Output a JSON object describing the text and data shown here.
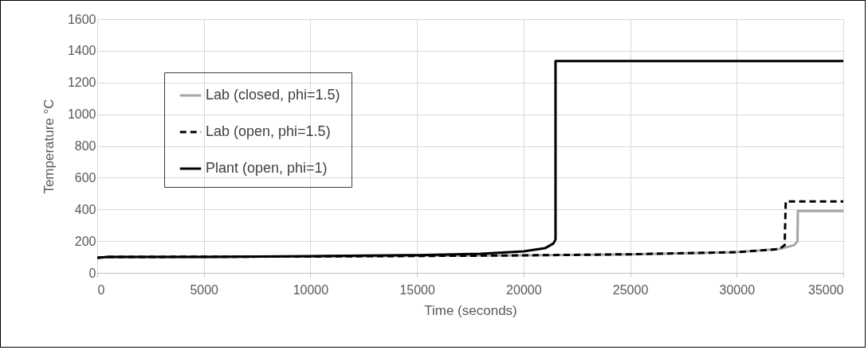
{
  "chart_data": {
    "type": "line",
    "xlabel": "Time (seconds)",
    "ylabel": "Temperature °C",
    "xlim": [
      0,
      35000
    ],
    "xticks": [
      0,
      5000,
      10000,
      15000,
      20000,
      25000,
      30000,
      35000
    ],
    "ylim": [
      0,
      1600
    ],
    "yticks": [
      0,
      200,
      400,
      600,
      800,
      1000,
      1200,
      1400,
      1600
    ],
    "grid": true,
    "legend": "top left",
    "series": [
      {
        "name": "Lab (closed, phi=1.5)",
        "color": "#a5a5a5",
        "line_style": "solid",
        "x": [
          0,
          500,
          10000,
          20000,
          25000,
          30000,
          32000,
          32700,
          32850,
          32870,
          35000
        ],
        "values": [
          95,
          100,
          103,
          110,
          117,
          130,
          150,
          175,
          200,
          390,
          390
        ]
      },
      {
        "name": "Lab (open, phi=1.5)",
        "color": "#000000",
        "line_style": "dashed",
        "x": [
          0,
          500,
          10000,
          20000,
          25000,
          30000,
          32000,
          32250,
          32300,
          35000
        ],
        "values": [
          95,
          100,
          103,
          110,
          117,
          130,
          150,
          175,
          450,
          450
        ]
      },
      {
        "name": "Plant (open, phi=1)",
        "color": "#000000",
        "line_style": "solid",
        "x": [
          0,
          500,
          5000,
          10000,
          15000,
          18000,
          20000,
          21000,
          21400,
          21500,
          21500,
          35000
        ],
        "values": [
          95,
          100,
          100,
          105,
          112,
          120,
          135,
          155,
          185,
          210,
          1335,
          1335
        ]
      }
    ]
  }
}
